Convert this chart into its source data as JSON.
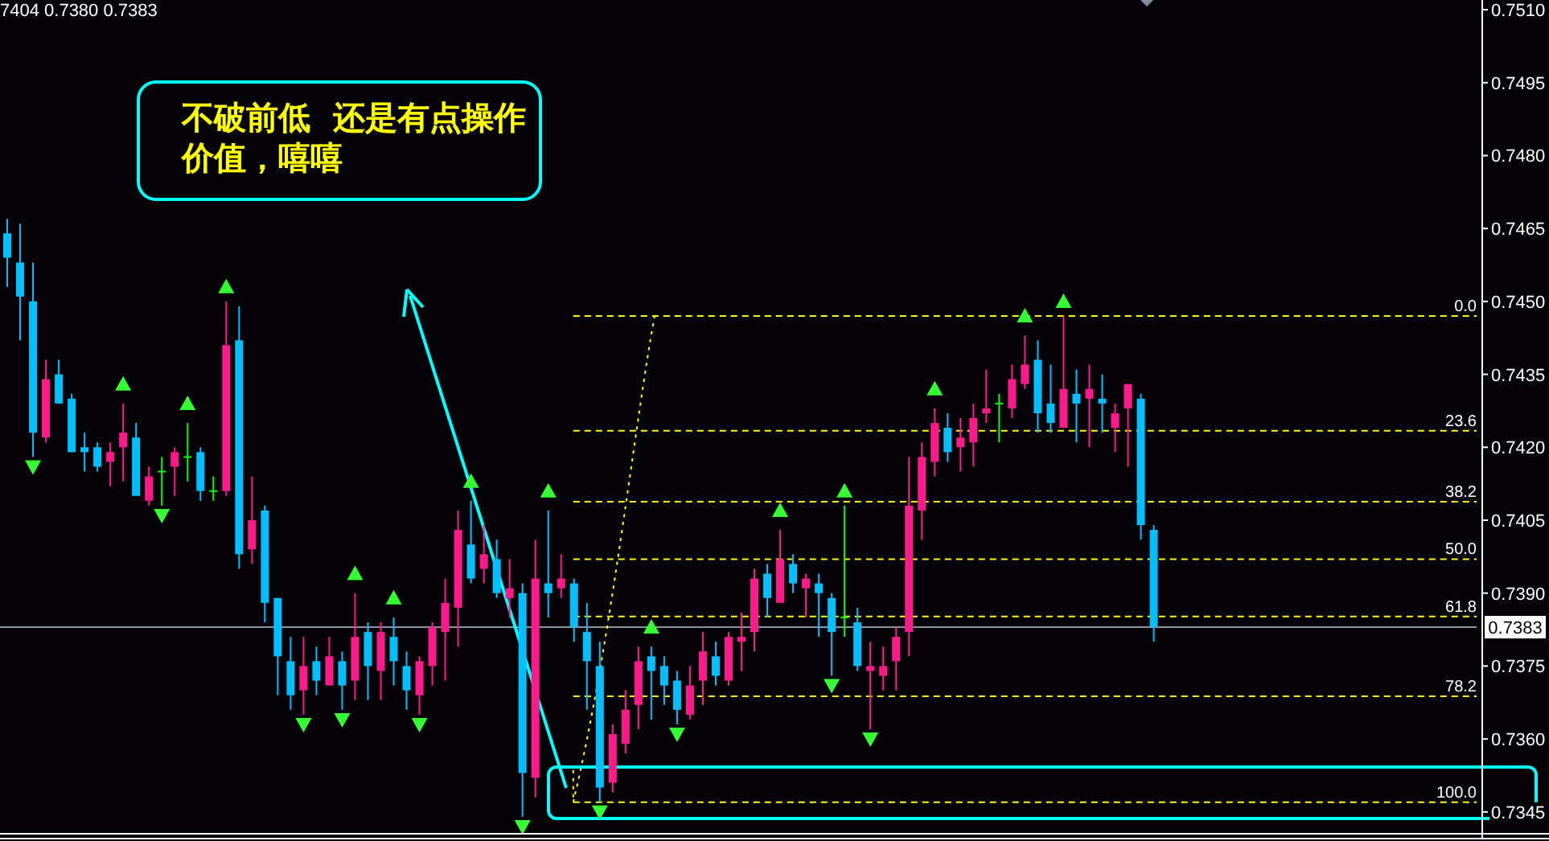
{
  "chart_data": {
    "type": "candlestick",
    "categories": [
      null,
      null,
      null,
      null,
      null,
      null,
      null,
      null,
      null,
      null,
      null,
      null,
      null,
      null,
      null,
      null,
      null,
      null,
      null,
      null,
      null,
      null,
      null,
      null,
      null,
      null,
      null,
      null,
      null,
      null,
      null,
      null,
      null,
      null,
      null,
      null,
      null,
      null,
      null,
      null,
      null,
      null,
      null,
      null,
      null,
      null,
      null,
      null,
      null,
      null,
      null,
      null,
      null,
      null,
      null,
      null,
      null,
      null,
      null,
      null,
      null,
      null,
      null,
      null,
      null,
      null,
      null,
      null,
      null,
      null,
      null,
      null,
      null,
      null,
      null,
      null,
      null,
      null,
      null,
      null,
      null,
      null,
      null,
      null,
      null,
      null,
      null,
      null,
      null,
      null,
      null,
      null,
      null,
      null,
      null,
      null,
      null,
      null,
      null,
      null,
      null,
      null,
      null,
      null,
      null,
      null,
      null,
      null,
      null,
      null,
      null,
      null,
      null,
      null,
      null
    ],
    "ohlc": [
      [
        0.7464,
        0.7467,
        0.7453,
        0.7459
      ],
      [
        0.7458,
        0.7466,
        0.7442,
        0.7451
      ],
      [
        0.745,
        0.7458,
        0.7418,
        0.7423
      ],
      [
        0.7422,
        0.7438,
        0.7421,
        0.7434
      ],
      [
        0.7435,
        0.7438,
        0.7429,
        0.7429
      ],
      [
        0.743,
        0.7431,
        0.7419,
        0.7419
      ],
      [
        0.742,
        0.7423,
        0.7415,
        0.7419
      ],
      [
        0.742,
        0.7421,
        0.7415,
        0.7416
      ],
      [
        0.7417,
        0.7421,
        0.7412,
        0.7419
      ],
      [
        0.742,
        0.7429,
        0.7413,
        0.7423
      ],
      [
        0.7422,
        0.7425,
        0.741,
        0.741
      ],
      [
        0.7409,
        0.7416,
        0.7408,
        0.7414
      ],
      [
        0.7415,
        0.7418,
        0.7408,
        0.7415
      ],
      [
        0.7416,
        0.742,
        0.741,
        0.7419
      ],
      [
        0.7418,
        0.7425,
        0.7413,
        0.7418
      ],
      [
        0.7419,
        0.742,
        0.7409,
        0.7411
      ],
      [
        0.7411,
        0.7414,
        0.7409,
        0.7411
      ],
      [
        0.7411,
        0.745,
        0.741,
        0.7441
      ],
      [
        0.7442,
        0.7449,
        0.7395,
        0.7398
      ],
      [
        0.7399,
        0.7414,
        0.7396,
        0.7405
      ],
      [
        0.7407,
        0.7408,
        0.7384,
        0.7388
      ],
      [
        0.7389,
        0.7389,
        0.7369,
        0.7377
      ],
      [
        0.7376,
        0.7381,
        0.7366,
        0.7369
      ],
      [
        0.737,
        0.7381,
        0.7365,
        0.7375
      ],
      [
        0.7376,
        0.7379,
        0.7369,
        0.7372
      ],
      [
        0.7371,
        0.7381,
        0.7371,
        0.7377
      ],
      [
        0.7376,
        0.7378,
        0.7366,
        0.7371
      ],
      [
        0.7372,
        0.739,
        0.7368,
        0.7381
      ],
      [
        0.7382,
        0.7384,
        0.7368,
        0.7375
      ],
      [
        0.7374,
        0.7384,
        0.7368,
        0.7382
      ],
      [
        0.7381,
        0.7385,
        0.7371,
        0.7376
      ],
      [
        0.7375,
        0.7378,
        0.7366,
        0.737
      ],
      [
        0.7369,
        0.7377,
        0.7365,
        0.7376
      ],
      [
        0.7375,
        0.7384,
        0.7371,
        0.7383
      ],
      [
        0.7382,
        0.7393,
        0.7372,
        0.7388
      ],
      [
        0.7387,
        0.7407,
        0.7379,
        0.7403
      ],
      [
        0.74,
        0.7409,
        0.7392,
        0.7393
      ],
      [
        0.7395,
        0.7404,
        0.7392,
        0.7398
      ],
      [
        0.7397,
        0.7401,
        0.7389,
        0.739
      ],
      [
        0.7389,
        0.7397,
        0.7385,
        0.7391
      ],
      [
        0.739,
        0.7392,
        0.7344,
        0.7353
      ],
      [
        0.7352,
        0.7401,
        0.7348,
        0.7393
      ],
      [
        0.7392,
        0.7407,
        0.7385,
        0.739
      ],
      [
        0.7391,
        0.7398,
        0.7389,
        0.7393
      ],
      [
        0.7392,
        0.7393,
        0.738,
        0.7383
      ],
      [
        0.7382,
        0.7388,
        0.7366,
        0.7376
      ],
      [
        0.7375,
        0.738,
        0.7347,
        0.735
      ],
      [
        0.7351,
        0.7363,
        0.7349,
        0.7361
      ],
      [
        0.7359,
        0.737,
        0.7357,
        0.7366
      ],
      [
        0.7367,
        0.7379,
        0.7362,
        0.7376
      ],
      [
        0.7377,
        0.7379,
        0.7364,
        0.7374
      ],
      [
        0.7375,
        0.7377,
        0.7367,
        0.7371
      ],
      [
        0.7372,
        0.7374,
        0.7363,
        0.7366
      ],
      [
        0.7365,
        0.7375,
        0.7364,
        0.7371
      ],
      [
        0.7372,
        0.7382,
        0.7367,
        0.7378
      ],
      [
        0.7377,
        0.738,
        0.7371,
        0.7373
      ],
      [
        0.7372,
        0.7382,
        0.7371,
        0.7381
      ],
      [
        0.738,
        0.7386,
        0.7374,
        0.7381
      ],
      [
        0.7382,
        0.7395,
        0.7378,
        0.7393
      ],
      [
        0.7394,
        0.7396,
        0.7385,
        0.7389
      ],
      [
        0.7388,
        0.7403,
        0.7388,
        0.7397
      ],
      [
        0.7396,
        0.7398,
        0.739,
        0.7392
      ],
      [
        0.7391,
        0.7394,
        0.7385,
        0.7393
      ],
      [
        0.7392,
        0.7394,
        0.7381,
        0.739
      ],
      [
        0.7389,
        0.739,
        0.7373,
        0.7382
      ],
      [
        0.7385,
        0.7408,
        0.7381,
        0.7385
      ],
      [
        0.7384,
        0.7387,
        0.7374,
        0.7375
      ],
      [
        0.7374,
        0.738,
        0.7362,
        0.7375
      ],
      [
        0.7373,
        0.7379,
        0.737,
        0.7375
      ],
      [
        0.7376,
        0.7383,
        0.737,
        0.7381
      ],
      [
        0.7382,
        0.7418,
        0.7377,
        0.7408
      ],
      [
        0.7407,
        0.7421,
        0.7401,
        0.7418
      ],
      [
        0.7417,
        0.7428,
        0.7414,
        0.7425
      ],
      [
        0.7424,
        0.7427,
        0.7417,
        0.7419
      ],
      [
        0.742,
        0.7426,
        0.7415,
        0.7422
      ],
      [
        0.7421,
        0.7429,
        0.7416,
        0.7426
      ],
      [
        0.7427,
        0.7436,
        0.7425,
        0.7428
      ],
      [
        0.7429,
        0.7431,
        0.7421,
        0.7429
      ],
      [
        0.7428,
        0.7437,
        0.7426,
        0.7434
      ],
      [
        0.7433,
        0.7443,
        0.7432,
        0.7437
      ],
      [
        0.7438,
        0.7442,
        0.7423,
        0.7427
      ],
      [
        0.7429,
        0.7437,
        0.7423,
        0.7425
      ],
      [
        0.7424,
        0.7447,
        0.7424,
        0.7432
      ],
      [
        0.7431,
        0.7436,
        0.7421,
        0.7429
      ],
      [
        0.743,
        0.7437,
        0.742,
        0.7432
      ],
      [
        0.743,
        0.7435,
        0.7423,
        0.7429
      ],
      [
        0.7424,
        0.7429,
        0.7419,
        0.7427
      ],
      [
        0.7428,
        0.7433,
        0.7416,
        0.7433
      ],
      [
        0.743,
        0.7431,
        0.7401,
        0.7404
      ],
      [
        0.7403,
        0.7404,
        0.738,
        0.7383
      ],
      null,
      null,
      null,
      null,
      null,
      null,
      null,
      null,
      null,
      null,
      null,
      null,
      null,
      null,
      null,
      null,
      null,
      null,
      null,
      null,
      null,
      null,
      null,
      null,
      null
    ],
    "colors": [
      "#00bfff",
      "#00bfff",
      "#00bfff",
      "#ff1a8c",
      "#00bfff",
      "#00bfff",
      "#00bfff",
      "#00bfff",
      "#ff1a8c",
      "#ff1a8c",
      "#00bfff",
      "#ff1a8c",
      "#00ff00",
      "#ff1a8c",
      "#00ff00",
      "#00bfff",
      "#00ff00",
      "#ff1a8c",
      "#00bfff",
      "#ff1a8c",
      "#00bfff",
      "#00bfff",
      "#00bfff",
      "#ff1a8c",
      "#00bfff",
      "#ff1a8c",
      "#00bfff",
      "#ff1a8c",
      "#00bfff",
      "#ff1a8c",
      "#00bfff",
      "#00bfff",
      "#ff1a8c",
      "#ff1a8c",
      "#ff1a8c",
      "#ff1a8c",
      "#00bfff",
      "#ff1a8c",
      "#00bfff",
      "#ff1a8c",
      "#00bfff",
      "#ff1a8c",
      "#00bfff",
      "#ff1a8c",
      "#00bfff",
      "#00bfff",
      "#00bfff",
      "#ff1a8c",
      "#ff1a8c",
      "#ff1a8c",
      "#00bfff",
      "#00bfff",
      "#00bfff",
      "#ff1a8c",
      "#ff1a8c",
      "#00bfff",
      "#ff1a8c",
      "#ff1a8c",
      "#ff1a8c",
      "#00bfff",
      "#ff1a8c",
      "#00bfff",
      "#ff1a8c",
      "#00bfff",
      "#00bfff",
      "#00ff00",
      "#00bfff",
      "#ff1a8c",
      "#ff1a8c",
      "#ff1a8c",
      "#ff1a8c",
      "#ff1a8c",
      "#ff1a8c",
      "#00bfff",
      "#ff1a8c",
      "#ff1a8c",
      "#ff1a8c",
      "#00ff00",
      "#ff1a8c",
      "#ff1a8c",
      "#00bfff",
      "#00bfff",
      "#ff1a8c",
      "#00bfff",
      "#ff1a8c",
      "#00bfff",
      "#ff1a8c",
      "#ff1a8c",
      "#00bfff",
      "#00bfff",
      null,
      null,
      null,
      null,
      null,
      null,
      null,
      null,
      null,
      null,
      null,
      null,
      null,
      null,
      null,
      null,
      null,
      null,
      null,
      null,
      null,
      null,
      null,
      null,
      null
    ],
    "series": [
      {
        "type": "scatter",
        "color": "#33ff33",
        "marker": "triangle",
        "values": [
          null,
          null,
          null,
          null,
          null,
          null,
          null,
          null,
          null,
          0.7433,
          null,
          null,
          null,
          null,
          0.7429,
          null,
          null,
          0.7453,
          null,
          null,
          null,
          null,
          null,
          null,
          null,
          null,
          null,
          0.7394,
          null,
          null,
          0.7389,
          null,
          null,
          null,
          null,
          null,
          0.7413,
          null,
          null,
          null,
          null,
          null,
          0.7411,
          null,
          null,
          null,
          null,
          null,
          null,
          null,
          0.7383,
          null,
          null,
          null,
          null,
          null,
          null,
          null,
          null,
          null,
          0.7407,
          null,
          null,
          null,
          null,
          0.7411,
          null,
          null,
          null,
          null,
          null,
          null,
          0.7432,
          null,
          null,
          null,
          null,
          null,
          null,
          0.7447,
          null,
          null,
          0.745,
          null,
          null,
          null,
          null,
          null,
          null,
          null,
          null,
          null,
          null,
          null,
          null,
          null,
          null,
          null,
          null,
          null,
          null,
          null,
          null,
          null,
          null,
          null,
          null,
          null,
          null,
          null,
          null,
          null,
          null,
          null,
          null
        ]
      },
      {
        "type": "scatter",
        "color": "#33ff33",
        "marker": "triangle",
        "values": [
          null,
          null,
          0.7416,
          null,
          null,
          null,
          null,
          null,
          null,
          null,
          null,
          null,
          0.7406,
          null,
          null,
          null,
          null,
          null,
          null,
          null,
          null,
          null,
          null,
          0.7363,
          null,
          null,
          0.7364,
          null,
          null,
          null,
          null,
          null,
          0.7363,
          null,
          null,
          null,
          null,
          null,
          null,
          null,
          0.7342,
          null,
          null,
          null,
          null,
          null,
          0.7345,
          null,
          null,
          null,
          null,
          null,
          0.7361,
          null,
          null,
          null,
          null,
          null,
          null,
          null,
          null,
          null,
          null,
          null,
          0.7371,
          null,
          null,
          0.736,
          null,
          null,
          null,
          null,
          null,
          null,
          null,
          null,
          null,
          null,
          null,
          null,
          null,
          null,
          null,
          null,
          null,
          null,
          null,
          null,
          null,
          null,
          null,
          null,
          null,
          null,
          null,
          null,
          null,
          null,
          null,
          null,
          null,
          null,
          null,
          null,
          null,
          null,
          null,
          null,
          null,
          null,
          null,
          null,
          null,
          null,
          null
        ]
      }
    ],
    "ylim": [
      0.7341,
      0.7512
    ],
    "yticks": [
      0.7345,
      {
        "value": 0.736,
        "label": "0.7360"
      },
      0.7375,
      {
        "value": 0.739,
        "label": "0.7390"
      },
      0.7405,
      {
        "value": 0.742,
        "label": "0.7420"
      },
      0.7435,
      {
        "value": 0.745,
        "label": "0.7450"
      },
      0.7465,
      {
        "value": 0.748,
        "label": "0.7480"
      },
      0.7495,
      {
        "value": 0.751,
        "label": "0.7510"
      }
    ],
    "tick_labels": "y",
    "ref_lines": [
      {
        "axis": "y",
        "value": 0.7447,
        "color": "#ffff00",
        "line_style": "dashed"
      },
      {
        "axis": "y",
        "value": 0.74234,
        "color": "#ffff00",
        "line_style": "dashed"
      },
      {
        "axis": "y",
        "value": 0.74088,
        "color": "#ffff00",
        "line_style": "dashed"
      },
      {
        "axis": "y",
        "value": 0.7397,
        "color": "#ffff00",
        "line_style": "dashed"
      },
      {
        "axis": "y",
        "value": 0.73852,
        "color": "#ffff00",
        "line_style": "dashed"
      },
      {
        "axis": "y",
        "value": 0.73688,
        "color": "#ffff00",
        "line_style": "dashed"
      },
      {
        "axis": "y",
        "value": 0.7347,
        "color": "#ffff00",
        "line_style": "dashed"
      },
      {
        "axis": "y",
        "value": 0.7383,
        "label": "0.7383",
        "color": "#8c96a0",
        "line_style": "solid"
      }
    ],
    "annotations": [
      "7404 0.7380 0.7383",
      "不破前低  还是有点操作价值，嘻嘻",
      {
        "text": "0.0",
        "y": 0.7447
      },
      {
        "text": "23.6",
        "y": 0.74234
      },
      {
        "text": "38.2",
        "y": 0.74088
      },
      {
        "text": "50.0",
        "y": 0.7397
      },
      {
        "text": "61.8",
        "y": 0.73852
      },
      {
        "text": "78.2",
        "y": 0.73688
      },
      {
        "text": "100.0",
        "y": 0.7347
      }
    ]
  }
}
